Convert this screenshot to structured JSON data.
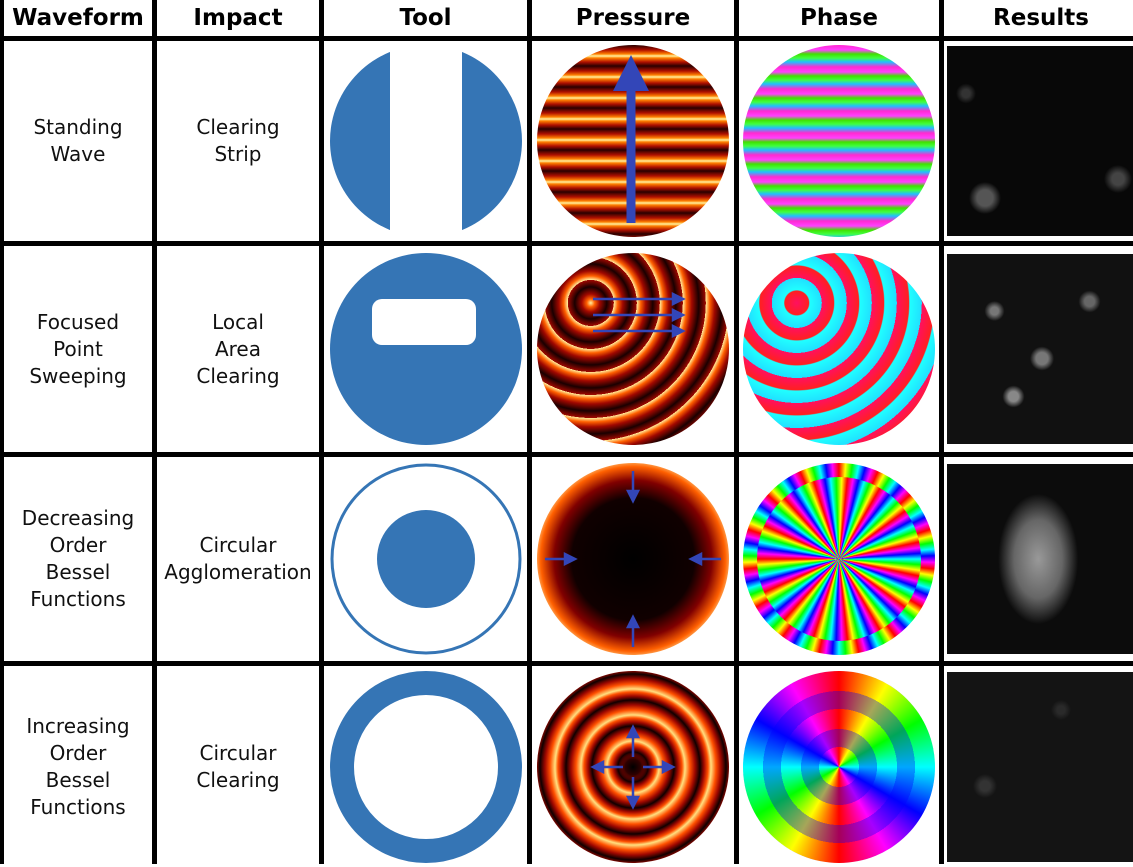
{
  "header": [
    "Waveform",
    "Impact",
    "Tool",
    "Pressure",
    "Phase",
    "Results"
  ],
  "rows": [
    {
      "waveform": [
        "Standing",
        "Wave"
      ],
      "impact": [
        "Clearing",
        "Strip"
      ]
    },
    {
      "waveform": [
        "Focused",
        "Point",
        "Sweeping"
      ],
      "impact": [
        "Local",
        "Area",
        "Clearing"
      ]
    },
    {
      "waveform": [
        "Decreasing",
        "Order",
        "Bessel",
        "Functions"
      ],
      "impact": [
        "Circular",
        "Agglomeration"
      ]
    },
    {
      "waveform": [
        "Increasing",
        "Order",
        "Bessel",
        "Functions"
      ],
      "impact": [
        "Circular",
        "Clearing"
      ]
    }
  ]
}
